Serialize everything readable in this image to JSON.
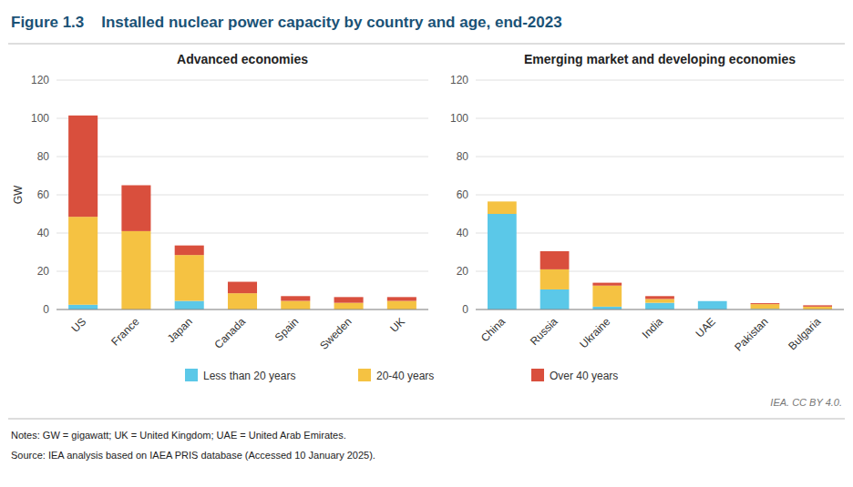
{
  "title": "Figure 1.3    Installed nuclear power capacity by country and age, end-2023",
  "annotations": [
    "IEA. CC BY 4.0.",
    "Notes: GW = gigawatt; UK = United Kingdom; UAE = United Arab Emirates.",
    "Source: IEA analysis based on IAEA PRIS database (Accessed 10 January 2025)."
  ],
  "chart_data": [
    {
      "type": "bar",
      "stacked": true,
      "grid": true,
      "title": "Advanced economies",
      "y_label": "GW",
      "categories": [
        "US",
        "France",
        "Japan",
        "Canada",
        "Spain",
        "Sweden",
        "UK"
      ],
      "series": [
        {
          "name": "Less than 20 years",
          "color": "#5BC8E8",
          "values": [
            2.5,
            0,
            4.5,
            0,
            0,
            0,
            0
          ]
        },
        {
          "name": "20-40 years",
          "color": "#F5C242",
          "values": [
            46,
            41,
            24,
            8.5,
            4.5,
            3.5,
            4.5
          ]
        },
        {
          "name": "Over 40 years",
          "color": "#D94F3D",
          "values": [
            53,
            24,
            5,
            6,
            2.5,
            3,
            2
          ]
        }
      ],
      "ylim": [
        0,
        120
      ],
      "yticks": [
        0,
        20,
        40,
        60,
        80,
        100,
        120
      ]
    },
    {
      "type": "bar",
      "stacked": true,
      "grid": true,
      "title": "Emerging market and developing economies",
      "categories": [
        "China",
        "Russia",
        "Ukraine",
        "India",
        "UAE",
        "Pakistan",
        "Bulgaria"
      ],
      "series": [
        {
          "color": "#5BC8E8",
          "values": [
            50,
            10.5,
            1.5,
            3.5,
            4.4,
            0.3,
            0
          ]
        },
        {
          "color": "#F5C242",
          "values": [
            6.5,
            10.5,
            11,
            2,
            0,
            2.5,
            1.5
          ]
        },
        {
          "color": "#D94F3D",
          "values": [
            0,
            9.5,
            1.5,
            1.5,
            0,
            0.5,
            0.7
          ]
        }
      ],
      "ylim": [
        0,
        120
      ],
      "yticks": [
        0,
        20,
        40,
        60,
        80,
        100,
        120
      ]
    }
  ]
}
